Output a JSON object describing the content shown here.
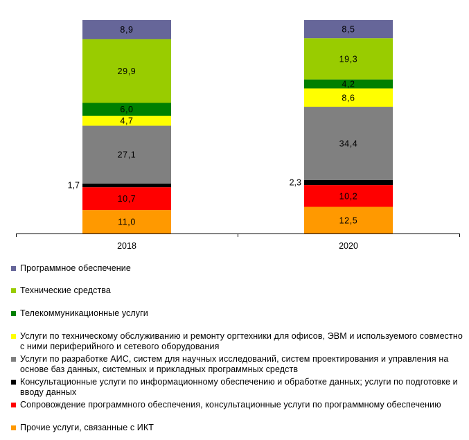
{
  "chart_data": {
    "type": "bar",
    "stacked": true,
    "categories": [
      "2018",
      "2020"
    ],
    "series": [
      {
        "name": "Прочие услуги, связанные с ИКТ",
        "values": [
          11.0,
          12.5
        ],
        "labels": [
          "11,0",
          "12,5"
        ],
        "color": "#ff9900"
      },
      {
        "name": "Сопровождение программного обеспечения, консультационные услуги по программному обеспечению",
        "values": [
          10.7,
          10.2
        ],
        "labels": [
          "10,7",
          "10,2"
        ],
        "color": "#ff0000"
      },
      {
        "name": "Консультационные услуги по информационному обеспечению и обработке данных; услуги по подготовке и вводу данных",
        "values": [
          1.7,
          2.3
        ],
        "labels": [
          "1,7",
          "2,3"
        ],
        "color": "#000000"
      },
      {
        "name": "Услуги по разработке АИС, систем для научных исследований, систем проектирования и управления на основе баз данных, системных и прикладных программных средств",
        "values": [
          27.1,
          34.4
        ],
        "labels": [
          "27,1",
          "34,4"
        ],
        "color": "#808080"
      },
      {
        "name": "Услуги по техническому обслуживанию и ремонту оргтехники для офисов, ЭВМ и используемого совместно с ними периферийного и сетевого оборудования",
        "values": [
          4.7,
          8.6
        ],
        "labels": [
          "4,7",
          "8,6"
        ],
        "color": "#ffff00"
      },
      {
        "name": "Телекоммуникационные услуги",
        "values": [
          6.0,
          4.2
        ],
        "labels": [
          "6,0",
          "4,2"
        ],
        "color": "#008000"
      },
      {
        "name": "Технические средства",
        "values": [
          29.9,
          19.3
        ],
        "labels": [
          "29,9",
          "19,3"
        ],
        "color": "#99cc00"
      },
      {
        "name": "Программное обеспечение",
        "values": [
          8.9,
          8.5
        ],
        "labels": [
          "8,9",
          "8,5"
        ],
        "color": "#666699"
      }
    ],
    "ylim": [
      0,
      100
    ],
    "grid": false,
    "legend_position": "bottom"
  },
  "legend": [
    {
      "label": "Программное обеспечение",
      "color": "#666699"
    },
    {
      "label": "Технические средства",
      "color": "#99cc00"
    },
    {
      "label": "Телекоммуникационные услуги",
      "color": "#008000"
    },
    {
      "label": "Услуги по техническому обслуживанию и ремонту оргтехники для офисов, ЭВМ и используемого совместно с ними периферийного  и сетевого оборудования",
      "color": "#ffff00"
    },
    {
      "label": "Услуги по разработке АИС, систем для научных исследований, систем проектирования и управления на основе баз данных, системных и прикладных программных средств",
      "color": "#808080"
    },
    {
      "label": "Консультационные услуги по информационному обеспечению и обработке данных; услуги по подготовке и вводу данных",
      "color": "#000000"
    },
    {
      "label": "Сопровождение программного обеспечения, консультационные услуги по программному обеспечению",
      "color": "#ff0000"
    },
    {
      "label": "Прочие услуги, связанные с ИКТ",
      "color": "#ff9900"
    }
  ]
}
